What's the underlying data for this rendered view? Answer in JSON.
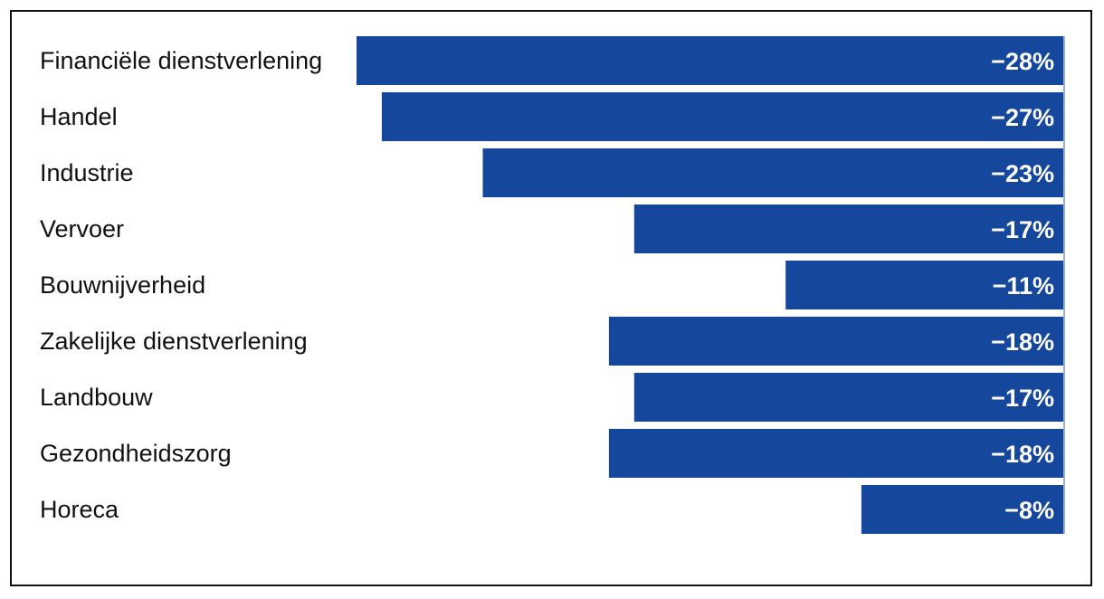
{
  "chart_data": {
    "type": "bar",
    "orientation": "horizontal",
    "title": "",
    "xlabel": "",
    "ylabel": "",
    "categories": [
      "Financiële dienstverlening",
      "Handel",
      "Industrie",
      "Vervoer",
      "Bouwnijverheid",
      "Zakelijke dienstverlening",
      "Landbouw",
      "Gezondheidszorg",
      "Horeca"
    ],
    "values": [
      -28,
      -27,
      -23,
      -17,
      -11,
      -18,
      -17,
      -18,
      -8
    ],
    "value_labels": [
      "−28%",
      "−27%",
      "−23%",
      "−17%",
      "−11%",
      "−18%",
      "−17%",
      "−18%",
      "−8%"
    ],
    "xlim": [
      -28,
      0
    ],
    "unit": "%",
    "grid": false,
    "legend": "none",
    "bar_color": "#15489c",
    "baseline_color": "#9bb0d6"
  }
}
